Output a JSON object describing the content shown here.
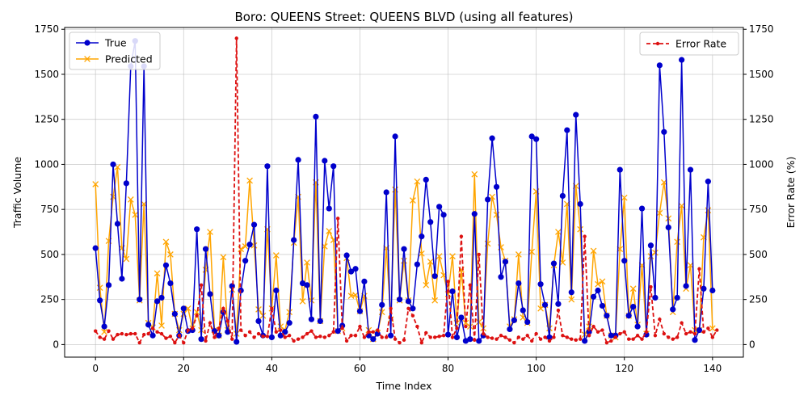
{
  "chart_data": {
    "type": "line",
    "title": "Boro: QUEENS Street: QUEENS BLVD (using all features)",
    "xlabel": "Time Index",
    "ylabel": "Traffic Volume",
    "y2label": "Error Rate (%)",
    "xlim": [
      -7,
      147
    ],
    "ylim": [
      -70,
      1760
    ],
    "y2lim": [
      -70,
      1760
    ],
    "xticks": [
      0,
      20,
      40,
      60,
      80,
      100,
      120,
      140
    ],
    "yticks": [
      0,
      250,
      500,
      750,
      1000,
      1250,
      1500,
      1750
    ],
    "y2ticks": [
      0,
      250,
      500,
      750,
      1000,
      1250,
      1500,
      1750
    ],
    "grid": true,
    "legend_left": "upper-left",
    "legend_right": "upper-right",
    "colors": {
      "true": "#0000cc",
      "predicted": "#ffa500",
      "error": "#dd1111",
      "grid": "#b0b0b0"
    },
    "series": [
      {
        "name": "True",
        "axis": "left",
        "marker": "circle",
        "values": [
          535,
          245,
          100,
          330,
          1000,
          670,
          365,
          895,
          1545,
          1685,
          250,
          1545,
          110,
          50,
          240,
          260,
          440,
          340,
          170,
          50,
          200,
          75,
          80,
          640,
          30,
          530,
          280,
          75,
          50,
          180,
          70,
          325,
          15,
          300,
          465,
          555,
          665,
          130,
          50,
          990,
          40,
          300,
          50,
          70,
          120,
          580,
          1025,
          340,
          330,
          140,
          1265,
          130,
          1020,
          755,
          990,
          75,
          105,
          495,
          405,
          420,
          185,
          350,
          50,
          30,
          60,
          220,
          845,
          50,
          1155,
          250,
          530,
          240,
          200,
          445,
          600,
          915,
          680,
          380,
          765,
          720,
          55,
          295,
          40,
          150,
          20,
          30,
          725,
          20,
          50,
          805,
          1145,
          875,
          375,
          460,
          85,
          135,
          340,
          190,
          125,
          1155,
          1140,
          335,
          220,
          40,
          450,
          225,
          825,
          1190,
          290,
          1275,
          780,
          20,
          70,
          265,
          300,
          215,
          160,
          50,
          50,
          970,
          465,
          160,
          210,
          100,
          755,
          55,
          550,
          260,
          1550,
          1180,
          650,
          195,
          260,
          1580,
          325,
          970,
          25,
          80,
          310,
          905,
          300
        ]
      },
      {
        "name": "Predicted",
        "axis": "left",
        "marker": "x",
        "values": [
          890,
          315,
          70,
          575,
          820,
          985,
          535,
          475,
          805,
          720,
          245,
          780,
          120,
          95,
          395,
          105,
          570,
          500,
          170,
          80,
          170,
          200,
          90,
          180,
          80,
          415,
          625,
          80,
          50,
          485,
          80,
          305,
          60,
          530,
          545,
          910,
          550,
          195,
          160,
          640,
          200,
          495,
          100,
          80,
          180,
          565,
          820,
          240,
          455,
          245,
          900,
          130,
          545,
          630,
          580,
          75,
          90,
          480,
          270,
          275,
          185,
          270,
          80,
          30,
          65,
          180,
          535,
          140,
          860,
          245,
          465,
          245,
          800,
          905,
          505,
          330,
          460,
          245,
          490,
          385,
          280,
          490,
          120,
          415,
          120,
          100,
          945,
          125,
          90,
          560,
          820,
          720,
          540,
          465,
          100,
          140,
          500,
          150,
          120,
          515,
          850,
          200,
          220,
          90,
          440,
          625,
          455,
          780,
          250,
          880,
          640,
          55,
          100,
          520,
          335,
          350,
          160,
          50,
          40,
          530,
          815,
          160,
          310,
          110,
          440,
          60,
          490,
          510,
          730,
          900,
          700,
          180,
          570,
          770,
          310,
          440,
          80,
          80,
          595,
          745,
          90
        ]
      },
      {
        "name": "Error Rate",
        "axis": "right",
        "marker": "dot",
        "values": [
          75,
          40,
          30,
          75,
          30,
          55,
          60,
          55,
          60,
          60,
          10,
          55,
          60,
          90,
          70,
          60,
          35,
          45,
          10,
          50,
          10,
          80,
          90,
          160,
          330,
          20,
          120,
          40,
          90,
          200,
          130,
          30,
          1700,
          80,
          50,
          70,
          40,
          60,
          45,
          45,
          200,
          70,
          80,
          40,
          50,
          20,
          30,
          40,
          60,
          75,
          40,
          45,
          40,
          50,
          70,
          700,
          90,
          20,
          50,
          50,
          100,
          40,
          70,
          70,
          80,
          40,
          40,
          200,
          30,
          10,
          25,
          200,
          160,
          100,
          10,
          65,
          40,
          40,
          45,
          50,
          350,
          40,
          90,
          600,
          100,
          330,
          25,
          500,
          60,
          40,
          35,
          30,
          50,
          40,
          25,
          10,
          40,
          30,
          50,
          20,
          60,
          30,
          40,
          20,
          40,
          190,
          50,
          40,
          30,
          25,
          30,
          600,
          50,
          100,
          70,
          80,
          10,
          20,
          40,
          60,
          70,
          30,
          30,
          50,
          30,
          70,
          320,
          50,
          140,
          60,
          40,
          30,
          40,
          120,
          60,
          70,
          60,
          420,
          70,
          90,
          40,
          80
        ]
      }
    ]
  }
}
